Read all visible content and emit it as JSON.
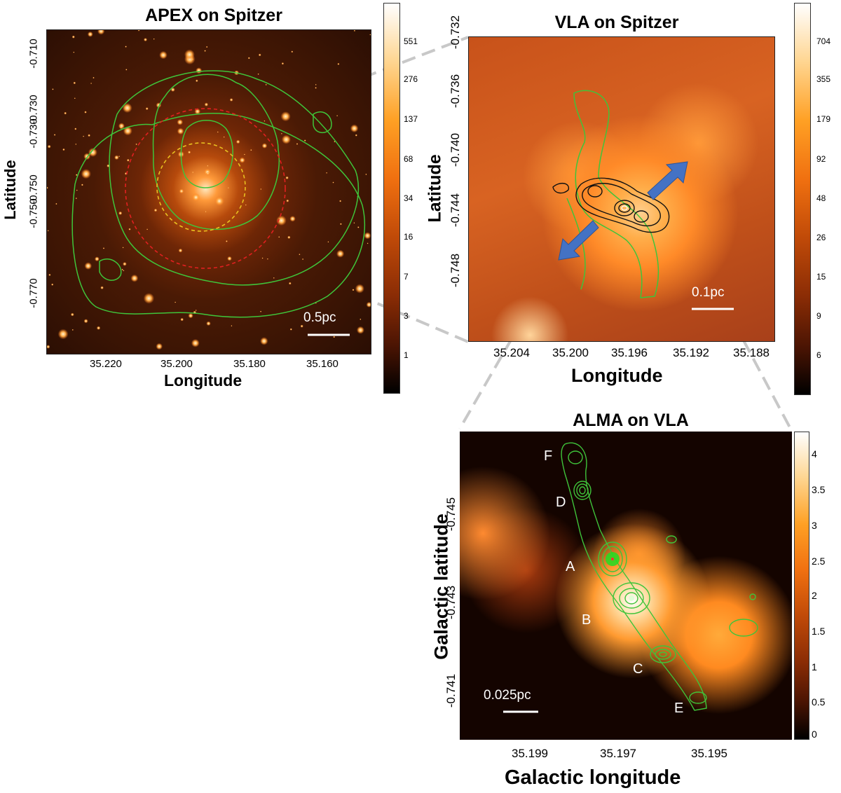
{
  "panel_apex": {
    "title": "APEX on Spitzer",
    "xlabel": "Longitude",
    "ylabel": "Latitude",
    "xticks": [
      "35.220",
      "35.200",
      "35.180",
      "35.160"
    ],
    "yticks": [
      "-0.710",
      "-0.730",
      "-0.730",
      "-0.750",
      "-0.750",
      "-0.770"
    ],
    "scalebar": "0.5pc",
    "colorbar_ticks": [
      "551",
      "276",
      "137",
      "68",
      "34",
      "16",
      "7",
      "3",
      "1"
    ]
  },
  "panel_vla": {
    "title": "VLA on Spitzer",
    "xlabel": "Longitude",
    "ylabel": "Latitude",
    "xticks": [
      "35.204",
      "35.200",
      "35.196",
      "35.192",
      "35.188"
    ],
    "yticks": [
      "-0.732",
      "-0.736",
      "-0.740",
      "-0.744",
      "-0.748"
    ],
    "scalebar": "0.1pc",
    "colorbar_ticks": [
      "704",
      "355",
      "179",
      "92",
      "48",
      "26",
      "15",
      "9",
      "6"
    ]
  },
  "panel_alma": {
    "title": "ALMA on VLA",
    "xlabel": "Galactic longitude",
    "ylabel": "Galactic latitude",
    "xticks": [
      "35.199",
      "35.197",
      "35.195"
    ],
    "yticks": [
      "-0.745",
      "-0.743",
      "-0.741"
    ],
    "scalebar": "0.025pc",
    "sources": [
      "F",
      "D",
      "A",
      "B",
      "C",
      "E"
    ],
    "colorbar_ticks": [
      "4",
      "3.5",
      "3",
      "2.5",
      "2",
      "1.5",
      "1",
      "0.5",
      "0"
    ]
  },
  "colors": {
    "contour_green": "#3fc43a",
    "circle_red": "#e02020",
    "circle_yellow": "#e8c020",
    "arrow_blue": "#4472c4",
    "dashed_gray": "#c8c8c8"
  }
}
